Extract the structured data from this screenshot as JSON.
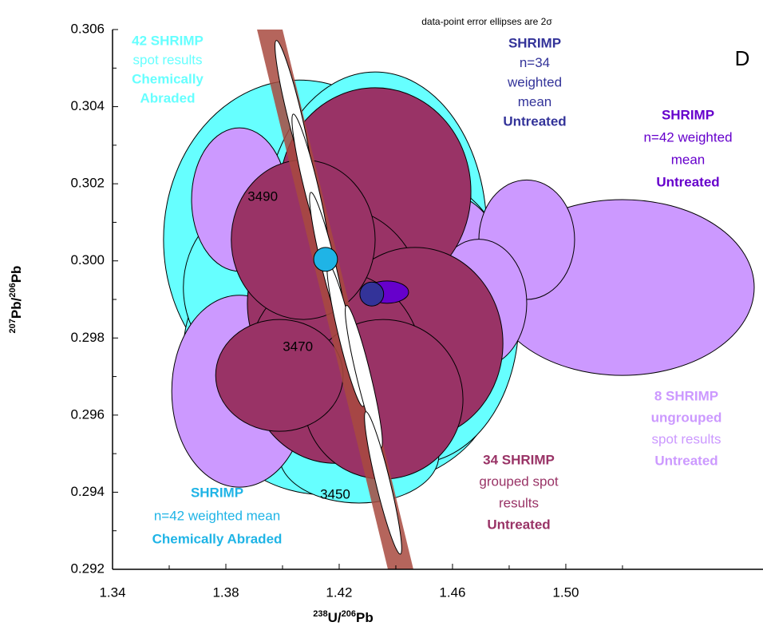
{
  "chart_data": {
    "type": "ellipse",
    "note": "data-point error ellipses are 2σ",
    "panel": "D",
    "xlabel": [
      "238",
      "U/",
      "206",
      "Pb"
    ],
    "ylabel": [
      "207",
      "Pb/",
      "206",
      "Pb"
    ],
    "xlim": [
      1.34,
      1.5696
    ],
    "ylim": [
      0.292,
      0.306
    ],
    "xticks": [
      1.34,
      1.38,
      1.42,
      1.46,
      {
        "value": 1.5,
        "label": "1.50"
      }
    ],
    "xminor": [
      1.36,
      1.4,
      1.44,
      1.48,
      1.52
    ],
    "yticks": [
      0.292,
      0.294,
      0.296,
      0.298,
      {
        "value": 0.3,
        "label": "0.300"
      },
      0.302,
      0.304,
      0.306
    ],
    "yminor": [
      0.293,
      0.295,
      0.297,
      0.299,
      0.301,
      0.303,
      0.305
    ],
    "concordia": {
      "color": "#a84a3f",
      "x": [
        1.3955,
        1.4417
      ],
      "y": [
        0.306,
        0.292
      ],
      "halfwidth": 0.0045,
      "ages": [
        null,
        3490,
        null,
        3470,
        null,
        3450
      ],
      "markers": [
        {
          "x": 1.4039,
          "y": 0.30387,
          "sx": 0.0025,
          "sy": 0.0019
        },
        {
          "x": 1.4099,
          "y": 0.30196,
          "sx": 0.0025,
          "sy": 0.0019
        },
        {
          "x": 1.4161,
          "y": 0.29993,
          "sx": 0.0025,
          "sy": 0.0019
        },
        {
          "x": 1.4223,
          "y": 0.29807,
          "sx": 0.0025,
          "sy": 0.0019
        },
        {
          "x": 1.4287,
          "y": 0.297,
          "sx": 0.0025,
          "sy": 0.0019
        },
        {
          "x": 1.4355,
          "y": 0.29424,
          "sx": 0.0025,
          "sy": 0.0019
        }
      ]
    },
    "series": [
      {
        "color": "#66ffff",
        "ellipses": [
          {
            "x": 1.4059,
            "y": 0.30055,
            "sx": 0.0479,
            "sy": 0.00414
          },
          {
            "x": 1.4327,
            "y": 0.30076,
            "sx": 0.0394,
            "sy": 0.00414
          },
          {
            "x": 1.4186,
            "y": 0.29807,
            "sx": 0.0507,
            "sy": 0.00373
          },
          {
            "x": 1.427,
            "y": 0.29682,
            "sx": 0.0479,
            "sy": 0.00269
          },
          {
            "x": 1.4073,
            "y": 0.29765,
            "sx": 0.0423,
            "sy": 0.00311
          },
          {
            "x": 1.3932,
            "y": 0.29931,
            "sx": 0.0282,
            "sy": 0.00228
          },
          {
            "x": 1.4355,
            "y": 0.30159,
            "sx": 0.031,
            "sy": 0.00249
          },
          {
            "x": 1.4158,
            "y": 0.29579,
            "sx": 0.0366,
            "sy": 0.00186
          },
          {
            "x": 1.4468,
            "y": 0.29848,
            "sx": 0.0366,
            "sy": 0.00373
          },
          {
            "x": 1.427,
            "y": 0.29496,
            "sx": 0.0282,
            "sy": 0.00124
          }
        ]
      },
      {
        "color": "#cc99ff",
        "ellipses": [
          {
            "x": 1.3848,
            "y": 0.30159,
            "sx": 0.0169,
            "sy": 0.00186
          },
          {
            "x": 1.3848,
            "y": 0.29662,
            "sx": 0.0239,
            "sy": 0.00249
          },
          {
            "x": 1.52,
            "y": 0.29931,
            "sx": 0.0465,
            "sy": 0.00228
          },
          {
            "x": 1.4552,
            "y": 0.29993,
            "sx": 0.0225,
            "sy": 0.00186
          },
          {
            "x": 1.4524,
            "y": 0.29848,
            "sx": 0.0197,
            "sy": 0.00186
          },
          {
            "x": 1.4862,
            "y": 0.30055,
            "sx": 0.0169,
            "sy": 0.00155
          },
          {
            "x": 1.4693,
            "y": 0.2989,
            "sx": 0.0169,
            "sy": 0.00166
          }
        ]
      },
      {
        "color": "#993366",
        "ellipses": [
          {
            "x": 1.4327,
            "y": 0.3018,
            "sx": 0.0338,
            "sy": 0.00269
          },
          {
            "x": 1.4186,
            "y": 0.2989,
            "sx": 0.031,
            "sy": 0.00249
          },
          {
            "x": 1.4468,
            "y": 0.29786,
            "sx": 0.031,
            "sy": 0.00249
          },
          {
            "x": 1.4186,
            "y": 0.29724,
            "sx": 0.031,
            "sy": 0.00249
          },
          {
            "x": 1.4355,
            "y": 0.29641,
            "sx": 0.0282,
            "sy": 0.00207
          },
          {
            "x": 1.4073,
            "y": 0.30055,
            "sx": 0.0254,
            "sy": 0.00207
          },
          {
            "x": 1.3989,
            "y": 0.29703,
            "sx": 0.0225,
            "sy": 0.00145
          }
        ]
      }
    ],
    "means": [
      {
        "color": "#1fb4e6",
        "x": 1.4152,
        "y": 0.30004,
        "sx": 0.0042,
        "sy": 0.00031
      },
      {
        "color": "#6600cc",
        "x": 1.4369,
        "y": 0.29919,
        "sx": 0.0076,
        "sy": 0.00029
      },
      {
        "color": "#333399",
        "x": 1.4315,
        "y": 0.29914,
        "sx": 0.0042,
        "sy": 0.00031
      }
    ],
    "annotations": [
      {
        "color": "#66ffff",
        "lines": [
          "42 SHRIMP",
          "spot results",
          "Chemically",
          "Abraded"
        ],
        "bold": [
          true,
          false,
          true,
          true
        ]
      },
      {
        "color": "#333399",
        "lines": [
          "SHRIMP",
          "n=34",
          "weighted",
          "mean",
          "Untreated"
        ],
        "bold": [
          true,
          false,
          false,
          false,
          true
        ]
      },
      {
        "color": "#6600cc",
        "lines": [
          "SHRIMP",
          "n=42 weighted",
          "mean",
          "Untreated"
        ],
        "bold": [
          true,
          false,
          false,
          true
        ]
      },
      {
        "color": "#cc99ff",
        "lines": [
          "8 SHRIMP",
          "ungrouped",
          "spot results",
          "Untreated"
        ],
        "bold": [
          true,
          true,
          false,
          true
        ]
      },
      {
        "color": "#993366",
        "lines": [
          "34 SHRIMP",
          "grouped spot",
          "results",
          "Untreated"
        ],
        "bold": [
          true,
          false,
          false,
          true
        ]
      },
      {
        "color": "#1fb4e6",
        "lines": [
          "SHRIMP",
          "n=42 weighted mean",
          "Chemically Abraded"
        ],
        "bold": [
          true,
          false,
          true
        ]
      }
    ]
  }
}
